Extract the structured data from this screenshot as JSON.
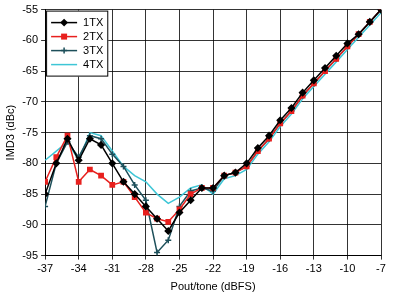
{
  "chart_data": {
    "type": "line",
    "x_label": "Pout/tone (dBFS)",
    "y_label": "IMD3 (dBc)",
    "xlim": [
      -37,
      -7
    ],
    "xticks": [
      -37,
      -34,
      -31,
      -28,
      -25,
      -22,
      -19,
      -16,
      -13,
      -10,
      -7
    ],
    "ylim": [
      -95,
      -55
    ],
    "yticks": [
      -95,
      -90,
      -85,
      -80,
      -75,
      -70,
      -65,
      -60,
      -55
    ],
    "grid": true,
    "legend": "top-left",
    "x": [
      -37,
      -36,
      -35,
      -34,
      -33,
      -32,
      -31,
      -30,
      -29,
      -28,
      -27,
      -26,
      -25,
      -24,
      -23,
      -22,
      -21,
      -20,
      -19,
      -18,
      -17,
      -16,
      -15,
      -14,
      -13,
      -12,
      -11,
      -10,
      -9,
      -8,
      -7
    ],
    "series": [
      {
        "name": "1TX",
        "color": "#000000",
        "marker": "diamond",
        "line_style": "solid",
        "values": [
          -85,
          -80,
          -76,
          -79.5,
          -76,
          -77,
          -80,
          -83,
          -85,
          -87,
          -89,
          -91,
          -88,
          -86,
          -84,
          -84,
          -82,
          -81.5,
          -80,
          -77.5,
          -75.5,
          -73,
          -71,
          -68.5,
          -66.5,
          -64.5,
          -62.5,
          -60.5,
          -59,
          -57,
          -55
        ]
      },
      {
        "name": "2TX",
        "color": "#e8201e",
        "marker": "square",
        "line_style": "solid",
        "values": [
          -83,
          -79,
          -75.5,
          -83,
          -81,
          -82,
          -83.5,
          -83,
          -85.5,
          -88,
          -89,
          -89.5,
          -87.5,
          -85,
          -84,
          -84,
          -82,
          -81.5,
          -80.5,
          -78,
          -76,
          -73.5,
          -71.5,
          -69,
          -67,
          -65,
          -63,
          -61,
          -59,
          -57,
          -55
        ]
      },
      {
        "name": "3TX",
        "color": "#1d4f5a",
        "marker": "cross",
        "line_style": "solid",
        "values": [
          -87,
          -80,
          -76.5,
          -79,
          -75.5,
          -76,
          -78.5,
          -80.5,
          -83.5,
          -86,
          -94.5,
          -92.5,
          -87,
          -84.5,
          -84,
          -84.5,
          -82,
          -81.5,
          -80.5,
          -78,
          -76,
          -73.5,
          -71.5,
          -69,
          -67,
          -65,
          -63,
          -61,
          -59,
          -57,
          -55
        ]
      },
      {
        "name": "4TX",
        "color": "#3ec6d6",
        "marker": "none",
        "line_style": "solid",
        "values": [
          -79.5,
          -78,
          -76.5,
          -79.5,
          -75,
          -75.5,
          -78,
          -80.5,
          -82,
          -83,
          -85,
          -86.5,
          -85.5,
          -84,
          -83.5,
          -85,
          -82.5,
          -82,
          -81,
          -78.5,
          -76.5,
          -74,
          -72,
          -69.5,
          -67.5,
          -65.5,
          -63.5,
          -61.5,
          -59.5,
          -57.5,
          -55.5
        ]
      }
    ]
  }
}
